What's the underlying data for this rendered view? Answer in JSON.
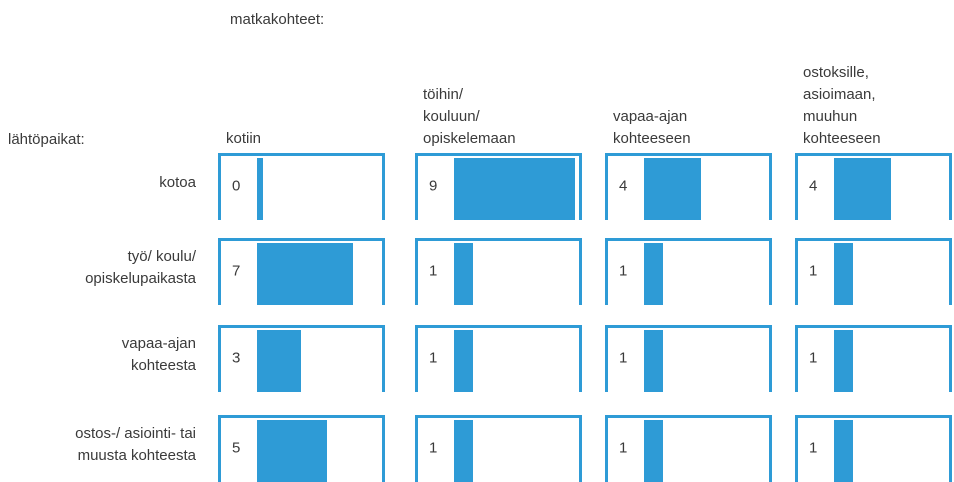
{
  "chart_data": {
    "type": "bar-matrix",
    "column_title": "matkakohteet:",
    "row_title": "lähtöpaikat:",
    "columns": [
      "kotiin",
      "töihin/\nkouluun/\nopiskelemaan",
      "vapaa-ajan\nkohteeseen",
      "ostoksille,\nasioimaan,\nmuuhun\nkohteeseen"
    ],
    "rows": [
      "kotoa",
      "työ/ koulu/\nopiskelupaikasta",
      "vapaa-ajan\nkohteesta",
      "ostos-/ asiointi- tai\nmuusta kohteesta"
    ],
    "values": [
      [
        0,
        9,
        4,
        4
      ],
      [
        7,
        1,
        1,
        1
      ],
      [
        3,
        1,
        1,
        1
      ],
      [
        5,
        1,
        1,
        1
      ]
    ],
    "color": "#2e9bd6"
  }
}
